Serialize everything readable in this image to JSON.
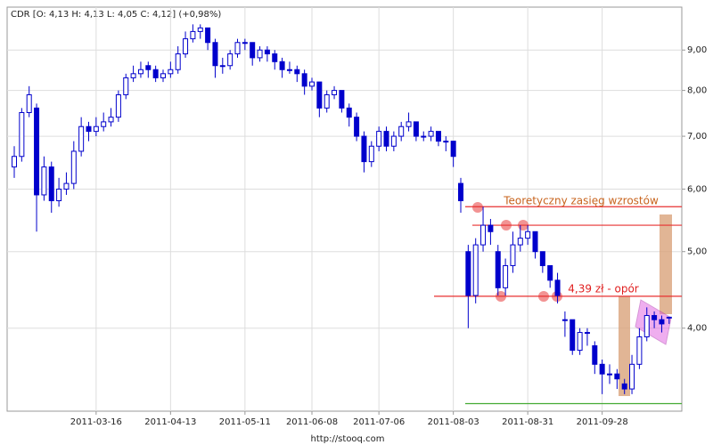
{
  "chart_data": {
    "type": "candlestick",
    "title": "CDR [O: 4,13  H: 4,13  L: 4,05  C: 4,12] (+0,98%)",
    "footer": "http://stooq.com",
    "categories": [
      null,
      null,
      null,
      null,
      null,
      null,
      null,
      null,
      null,
      null,
      null,
      "2011-03-16",
      null,
      null,
      null,
      null,
      null,
      null,
      null,
      null,
      null,
      "2011-04-13",
      null,
      null,
      null,
      null,
      null,
      null,
      null,
      null,
      null,
      "2011-05-11",
      null,
      null,
      null,
      null,
      null,
      null,
      null,
      null,
      "2011-06-08",
      null,
      null,
      null,
      null,
      null,
      null,
      null,
      null,
      "2011-07-06",
      null,
      null,
      null,
      null,
      null,
      null,
      null,
      null,
      null,
      "2011-08-03",
      null,
      null,
      null,
      null,
      null,
      null,
      null,
      null,
      null,
      "2011-08-31",
      null,
      null,
      null,
      null,
      null,
      null,
      null,
      null,
      null,
      "2011-09-28",
      null,
      null,
      null,
      null,
      null,
      null,
      null,
      null,
      null
    ],
    "open": [
      6.4,
      6.6,
      7.5,
      7.6,
      5.9,
      6.4,
      5.8,
      6.0,
      6.1,
      6.7,
      7.2,
      7.1,
      7.2,
      7.3,
      7.4,
      7.9,
      8.3,
      8.4,
      8.6,
      8.5,
      8.3,
      8.4,
      8.5,
      8.9,
      9.3,
      9.5,
      9.6,
      9.2,
      8.6,
      8.6,
      8.9,
      9.2,
      9.2,
      8.8,
      9.0,
      8.9,
      8.7,
      8.5,
      8.5,
      8.4,
      8.1,
      8.2,
      7.6,
      7.9,
      8.0,
      7.6,
      7.4,
      7.0,
      6.5,
      6.8,
      7.1,
      6.8,
      7.0,
      7.2,
      7.3,
      7.0,
      7.0,
      7.1,
      6.9,
      6.9,
      6.1,
      5.0,
      4.4,
      5.1,
      5.4,
      5.0,
      4.5,
      4.8,
      5.1,
      5.2,
      5.3,
      5.0,
      4.8,
      4.6,
      4.1,
      4.1,
      3.75,
      3.95,
      3.8,
      3.6,
      3.5,
      3.5,
      3.4,
      3.35,
      3.6,
      3.9,
      4.15,
      4.1,
      4.13
    ],
    "high": [
      6.8,
      7.6,
      8.1,
      7.7,
      6.6,
      6.5,
      6.2,
      6.3,
      6.9,
      7.4,
      7.3,
      7.4,
      7.5,
      7.6,
      8.0,
      8.4,
      8.6,
      8.7,
      8.7,
      8.6,
      8.5,
      8.7,
      9.1,
      9.5,
      9.7,
      9.7,
      9.6,
      9.3,
      8.8,
      9.0,
      9.3,
      9.3,
      9.2,
      9.1,
      9.1,
      9.0,
      8.8,
      8.7,
      8.6,
      8.5,
      8.3,
      8.2,
      8.0,
      8.1,
      8.0,
      7.7,
      7.5,
      7.1,
      6.9,
      7.2,
      7.2,
      7.1,
      7.3,
      7.5,
      7.3,
      7.1,
      7.2,
      7.1,
      7.0,
      6.9,
      6.2,
      5.1,
      5.2,
      5.7,
      5.5,
      5.1,
      4.9,
      5.3,
      5.4,
      5.4,
      5.3,
      5.0,
      4.8,
      4.7,
      4.2,
      4.1,
      4.0,
      4.0,
      3.85,
      3.65,
      3.6,
      3.55,
      3.45,
      3.7,
      4.0,
      4.25,
      4.2,
      4.15,
      4.13
    ],
    "low": [
      6.2,
      6.5,
      7.4,
      5.3,
      5.8,
      5.6,
      5.7,
      5.9,
      6.0,
      6.6,
      6.9,
      7.0,
      7.1,
      7.2,
      7.3,
      7.8,
      8.2,
      8.3,
      8.3,
      8.2,
      8.2,
      8.3,
      8.4,
      8.8,
      9.2,
      9.3,
      9.0,
      8.3,
      8.4,
      8.5,
      8.8,
      9.0,
      8.6,
      8.7,
      8.7,
      8.5,
      8.3,
      8.4,
      8.2,
      7.9,
      8.0,
      7.4,
      7.5,
      7.8,
      7.5,
      7.2,
      6.9,
      6.3,
      6.4,
      6.7,
      6.7,
      6.7,
      6.9,
      7.1,
      6.9,
      6.9,
      6.9,
      6.8,
      6.7,
      6.4,
      5.6,
      4.0,
      4.3,
      5.0,
      5.1,
      4.4,
      4.4,
      4.7,
      5.0,
      5.1,
      4.9,
      4.7,
      4.5,
      4.3,
      3.9,
      3.7,
      3.7,
      3.8,
      3.5,
      3.3,
      3.4,
      3.35,
      3.3,
      3.3,
      3.55,
      3.85,
      4.0,
      3.95,
      4.05
    ],
    "close": [
      6.6,
      7.5,
      7.9,
      5.9,
      6.4,
      5.8,
      6.0,
      6.1,
      6.7,
      7.2,
      7.1,
      7.2,
      7.3,
      7.4,
      7.9,
      8.3,
      8.4,
      8.5,
      8.5,
      8.3,
      8.4,
      8.5,
      8.9,
      9.3,
      9.5,
      9.6,
      9.2,
      8.6,
      8.6,
      8.9,
      9.2,
      9.2,
      8.8,
      9.0,
      8.9,
      8.7,
      8.5,
      8.5,
      8.4,
      8.1,
      8.2,
      7.6,
      7.9,
      8.0,
      7.6,
      7.4,
      7.0,
      6.5,
      6.8,
      7.1,
      6.8,
      7.0,
      7.2,
      7.3,
      7.0,
      7.0,
      7.1,
      6.9,
      6.9,
      6.6,
      5.8,
      4.4,
      5.1,
      5.4,
      5.3,
      4.5,
      4.8,
      5.1,
      5.2,
      5.3,
      5.0,
      4.8,
      4.6,
      4.4,
      4.1,
      3.75,
      3.95,
      3.95,
      3.6,
      3.5,
      3.5,
      3.45,
      3.35,
      3.6,
      3.9,
      4.15,
      4.1,
      4.05,
      4.12
    ],
    "color": "#0000cc",
    "log_scale": true,
    "grid": true,
    "ylim": [
      3.14,
      10.2
    ],
    "yticks": [
      {
        "value": 4,
        "label": "4,00"
      },
      {
        "value": 5,
        "label": "5,00"
      },
      {
        "value": 6,
        "label": "6,00"
      },
      {
        "value": 7,
        "label": "7,00"
      },
      {
        "value": 8,
        "label": "8,00"
      },
      {
        "value": 9,
        "label": "9,00"
      }
    ],
    "levels": [
      {
        "value": 5.7,
        "color": "#e83030"
      },
      {
        "value": 5.4,
        "color": "#e83030"
      },
      {
        "value": 4.39,
        "color": "#e83030"
      },
      {
        "value": 3.21,
        "color": "#44aa33"
      }
    ],
    "annotations": [
      {
        "text": "Teoretyczny zasięg wzrostów",
        "color": "#c8641e"
      },
      {
        "text": "4,39 zł - opór",
        "color": "#e02020"
      }
    ]
  }
}
